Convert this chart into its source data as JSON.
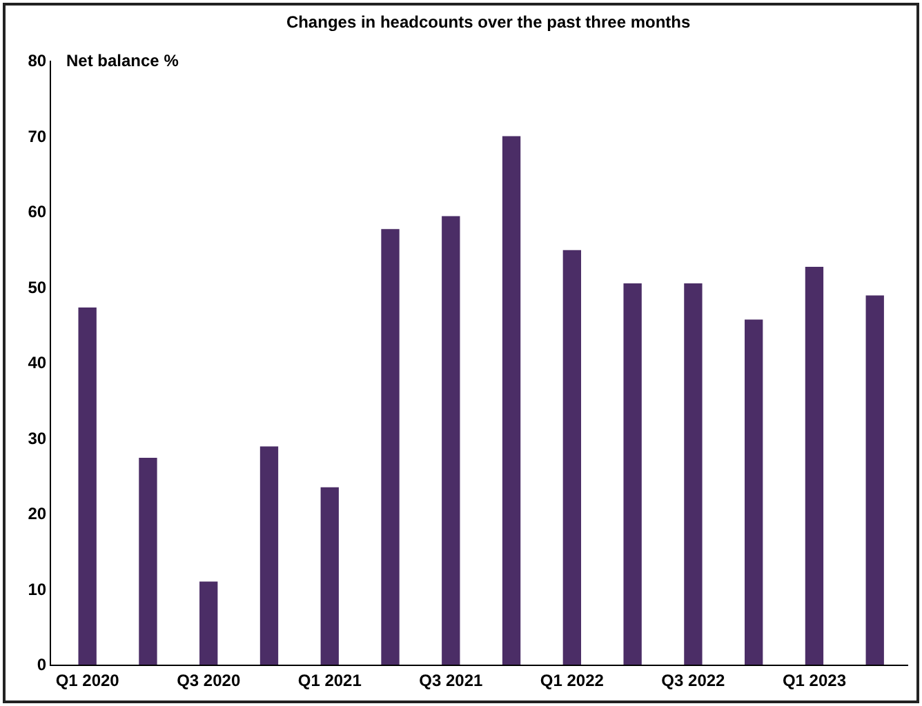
{
  "chart_data": {
    "type": "bar",
    "title": "Changes in headcounts over the past three months",
    "ylabel": "Net balance %",
    "categories": [
      "Q1 2020",
      null,
      "Q3 2020",
      null,
      "Q1 2021",
      null,
      "Q3 2021",
      null,
      "Q1 2022",
      null,
      "Q3 2022",
      null,
      "Q1 2023",
      null
    ],
    "values": [
      47.3,
      27.4,
      11.0,
      28.9,
      23.5,
      57.7,
      59.4,
      70.0,
      54.9,
      50.5,
      50.5,
      45.7,
      52.7,
      48.9
    ],
    "color": "#4b2d66",
    "ylim": [
      0,
      80
    ],
    "yticks": [
      0,
      10,
      20,
      30,
      40,
      50,
      60,
      70,
      80
    ],
    "grid": false
  }
}
